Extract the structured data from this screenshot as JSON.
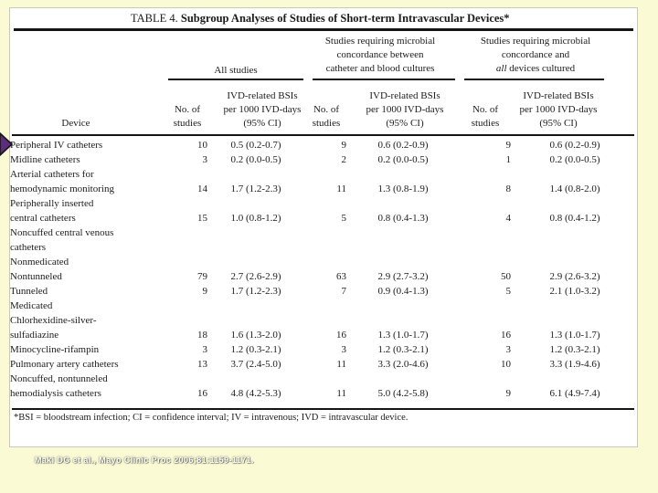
{
  "slide": {
    "bg_color": "#FAFAD5",
    "arrow_color": "#5C2D7E",
    "citation": "Maki DG et al., Mayo Clinic Proc 2006;81:1159-1171.",
    "citation_color": "#FFFFFF"
  },
  "table": {
    "title_prefix": "TABLE 4.",
    "title_rest": " Subgroup Analyses of Studies of Short-term Intravascular Devices*",
    "col_groups": {
      "g1": "All studies",
      "g2": "Studies requiring microbial\nconcordance between\ncatheter and blood cultures",
      "g3_lines": "Studies requiring microbial\nconcordance and\n",
      "g3_italic": "all",
      "g3_rest": " devices cultured"
    },
    "sub_headers": {
      "device": "Device",
      "no_of_studies": "No. of\nstudies",
      "rate": "IVD-related BSIs\nper 1000 IVD-days\n(95% CI)"
    },
    "rows": [
      {
        "device": "Peripheral IV catheters",
        "indent": 0,
        "c1": "10",
        "r1": "0.5 (0.2-0.7)",
        "c2": "9",
        "r2": "0.6 (0.2-0.9)",
        "c3": "9",
        "r3": "0.6 (0.2-0.9)"
      },
      {
        "device": "Midline catheters",
        "indent": 0,
        "c1": "3",
        "r1": "0.2 (0.0-0.5)",
        "c2": "2",
        "r2": "0.2 (0.0-0.5)",
        "c3": "1",
        "r3": "0.2 (0.0-0.5)"
      },
      {
        "device": "Arterial catheters for",
        "indent": 0,
        "c1": "",
        "r1": "",
        "c2": "",
        "r2": "",
        "c3": "",
        "r3": ""
      },
      {
        "device": "hemodynamic monitoring",
        "indent": 1,
        "c1": "14",
        "r1": "1.7 (1.2-2.3)",
        "c2": "11",
        "r2": "1.3 (0.8-1.9)",
        "c3": "8",
        "r3": "1.4 (0.8-2.0)"
      },
      {
        "device": "Peripherally inserted",
        "indent": 0,
        "c1": "",
        "r1": "",
        "c2": "",
        "r2": "",
        "c3": "",
        "r3": ""
      },
      {
        "device": "central catheters",
        "indent": 1,
        "c1": "15",
        "r1": "1.0 (0.8-1.2)",
        "c2": "5",
        "r2": "0.8 (0.4-1.3)",
        "c3": "4",
        "r3": "0.8 (0.4-1.2)"
      },
      {
        "device": "Noncuffed central venous",
        "indent": 0,
        "c1": "",
        "r1": "",
        "c2": "",
        "r2": "",
        "c3": "",
        "r3": ""
      },
      {
        "device": "catheters",
        "indent": 1,
        "c1": "",
        "r1": "",
        "c2": "",
        "r2": "",
        "c3": "",
        "r3": ""
      },
      {
        "device": "Nonmedicated",
        "indent": 2,
        "c1": "",
        "r1": "",
        "c2": "",
        "r2": "",
        "c3": "",
        "r3": ""
      },
      {
        "device": "Nontunneled",
        "indent": 3,
        "c1": "79",
        "r1": "2.7 (2.6-2.9)",
        "c2": "63",
        "r2": "2.9 (2.7-3.2)",
        "c3": "50",
        "r3": "2.9 (2.6-3.2)"
      },
      {
        "device": "Tunneled",
        "indent": 3,
        "c1": "9",
        "r1": "1.7 (1.2-2.3)",
        "c2": "7",
        "r2": "0.9 (0.4-1.3)",
        "c3": "5",
        "r3": "2.1 (1.0-3.2)"
      },
      {
        "device": "Medicated",
        "indent": 2,
        "c1": "",
        "r1": "",
        "c2": "",
        "r2": "",
        "c3": "",
        "r3": ""
      },
      {
        "device": "Chlorhexidine-silver-",
        "indent": 3,
        "c1": "",
        "r1": "",
        "c2": "",
        "r2": "",
        "c3": "",
        "r3": ""
      },
      {
        "device": "sulfadiazine",
        "indent": 4,
        "c1": "18",
        "r1": "1.6 (1.3-2.0)",
        "c2": "16",
        "r2": "1.3 (1.0-1.7)",
        "c3": "16",
        "r3": "1.3 (1.0-1.7)"
      },
      {
        "device": "Minocycline-rifampin",
        "indent": 3,
        "c1": "3",
        "r1": "1.2 (0.3-2.1)",
        "c2": "3",
        "r2": "1.2 (0.3-2.1)",
        "c3": "3",
        "r3": "1.2 (0.3-2.1)"
      },
      {
        "device": "Pulmonary artery catheters",
        "indent": 2,
        "c1": "13",
        "r1": "3.7 (2.4-5.0)",
        "c2": "11",
        "r2": "3.3 (2.0-4.6)",
        "c3": "10",
        "r3": "3.3 (1.9-4.6)"
      },
      {
        "device": "Noncuffed, nontunneled",
        "indent": 0,
        "c1": "",
        "r1": "",
        "c2": "",
        "r2": "",
        "c3": "",
        "r3": ""
      },
      {
        "device": "hemodialysis catheters",
        "indent": 1,
        "c1": "16",
        "r1": "4.8 (4.2-5.3)",
        "c2": "11",
        "r2": "5.0 (4.2-5.8)",
        "c3": "9",
        "r3": "6.1 (4.9-7.4)"
      }
    ],
    "footnote": "*BSI = bloodstream infection; CI = confidence interval; IV = intravenous; IVD = intravascular device."
  }
}
